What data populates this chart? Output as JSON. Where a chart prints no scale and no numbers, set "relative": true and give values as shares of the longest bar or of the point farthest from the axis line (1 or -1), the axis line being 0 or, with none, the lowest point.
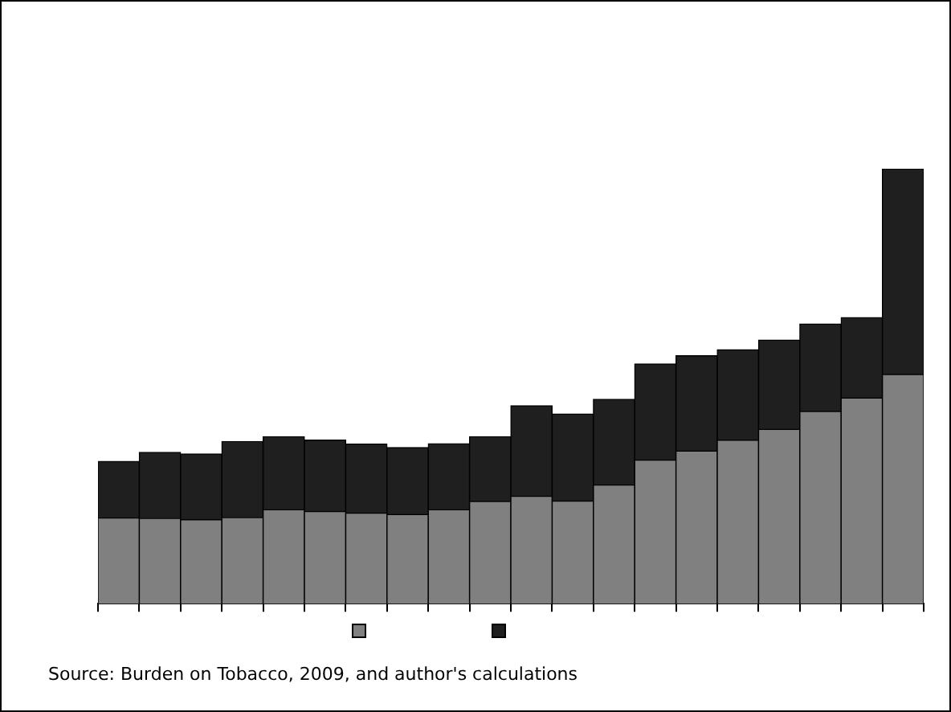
{
  "chart_data": {
    "type": "bar",
    "stacked": true,
    "relative": true,
    "grid": false,
    "categories": [
      null,
      null,
      null,
      null,
      null,
      null,
      null,
      null,
      null,
      null,
      null,
      null,
      null,
      null,
      null,
      null,
      null,
      null,
      null,
      null
    ],
    "series": [
      {
        "color": "#808080",
        "values": [
          0.197,
          0.196,
          0.193,
          0.198,
          0.216,
          0.212,
          0.208,
          0.205,
          0.216,
          0.235,
          0.247,
          0.236,
          0.273,
          0.33,
          0.351,
          0.376,
          0.401,
          0.442,
          0.473,
          0.527
        ]
      },
      {
        "color": "#1f1f1f",
        "values": [
          0.13,
          0.152,
          0.151,
          0.175,
          0.168,
          0.164,
          0.159,
          0.154,
          0.152,
          0.149,
          0.208,
          0.2,
          0.197,
          0.221,
          0.219,
          0.208,
          0.205,
          0.201,
          0.185,
          0.473
        ]
      }
    ],
    "annotations": [
      "Source: Burden on Tobacco, 2009, and author's calculations"
    ]
  }
}
